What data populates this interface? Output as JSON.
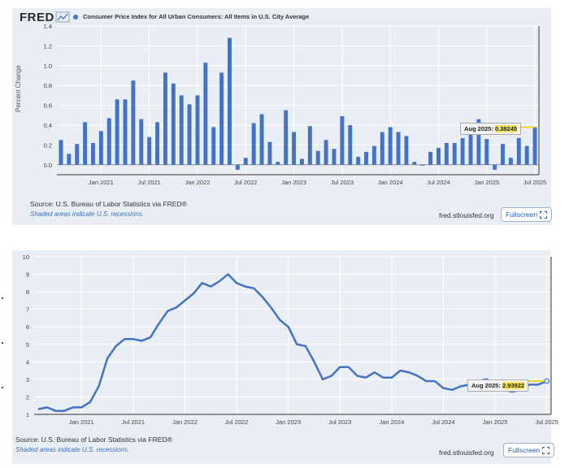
{
  "panel1": {
    "logo": "FRED",
    "legend_label": "Consumer Price Index for All Urban Consumers: All Items in U.S. City Average",
    "source": "Source: U.S. Bureau of Labor Statistics via FRED®",
    "note": "Shaded areas indicate U.S. recessions.",
    "domain": "fred.stlouisfed.org",
    "fullscreen_label": "Fullscreen",
    "tooltip": {
      "date": "Aug 2025:",
      "value": "0.38245"
    }
  },
  "panel2": {
    "source": "Source: U.S. Bureau of Labor Statistics via FRED®",
    "note": "Shaded areas indicate U.S. recessions.",
    "domain": "fred.stlouisfed.org",
    "fullscreen_label": "Fullscreen",
    "tooltip": {
      "date": "Aug 2025:",
      "value": "2.93922"
    }
  },
  "colors": {
    "series": "#4472c4",
    "panel_bg": "#e9eef5",
    "tooltip_marker": "#f2d22a",
    "link": "#3b6fb6"
  },
  "chart_data": [
    {
      "type": "bar",
      "ylabel": "Percent Change",
      "ylim": [
        -0.1,
        1.4
      ],
      "yticks": [
        0.0,
        0.2,
        0.4,
        0.6,
        0.8,
        1.0,
        1.2,
        1.4
      ],
      "xticks": [
        "Jan 2021",
        "Jul 2021",
        "Jan 2022",
        "Jul 2022",
        "Jan 2023",
        "Jul 2023",
        "Jan 2024",
        "Jul 2024",
        "Jan 2025",
        "Jul 2025"
      ],
      "x_start": "2020-08",
      "x_end": "2025-08",
      "grid": true,
      "values": [
        0.25,
        0.11,
        0.21,
        0.43,
        0.22,
        0.34,
        0.47,
        0.66,
        0.66,
        0.85,
        0.46,
        0.28,
        0.43,
        0.93,
        0.82,
        0.7,
        0.61,
        0.7,
        1.03,
        0.38,
        0.93,
        1.28,
        -0.05,
        0.07,
        0.42,
        0.51,
        0.23,
        0.03,
        0.55,
        0.33,
        0.06,
        0.39,
        0.14,
        0.25,
        0.16,
        0.49,
        0.4,
        0.08,
        0.13,
        0.19,
        0.33,
        0.38,
        0.33,
        0.29,
        0.03,
        0.0,
        0.13,
        0.17,
        0.22,
        0.22,
        0.27,
        0.31,
        0.46,
        0.26,
        -0.05,
        0.21,
        0.07,
        0.27,
        0.19,
        0.38
      ]
    },
    {
      "type": "line",
      "ylim": [
        1,
        10
      ],
      "yticks": [
        1,
        2,
        3,
        4,
        5,
        6,
        7,
        8,
        9,
        10
      ],
      "xticks": [
        "Jan 2021",
        "Jul 2021",
        "Jan 2022",
        "Jul 2022",
        "Jan 2023",
        "Jul 2023",
        "Jan 2024",
        "Jul 2024",
        "Jan 2025",
        "Jul 2025"
      ],
      "x_start": "2020-08",
      "x_end": "2025-08",
      "grid": true,
      "values": [
        1.3,
        1.4,
        1.2,
        1.2,
        1.4,
        1.4,
        1.7,
        2.6,
        4.2,
        4.9,
        5.3,
        5.3,
        5.2,
        5.4,
        6.2,
        6.9,
        7.1,
        7.5,
        7.9,
        8.5,
        8.3,
        8.6,
        9.0,
        8.5,
        8.3,
        8.2,
        7.7,
        7.1,
        6.4,
        6.0,
        5.0,
        4.9,
        4.0,
        3.0,
        3.2,
        3.7,
        3.7,
        3.2,
        3.1,
        3.4,
        3.1,
        3.1,
        3.5,
        3.4,
        3.2,
        2.9,
        2.9,
        2.5,
        2.4,
        2.6,
        2.7,
        2.9,
        3.0,
        2.8,
        2.4,
        2.3,
        2.4,
        2.7,
        2.7,
        2.9
      ]
    }
  ]
}
